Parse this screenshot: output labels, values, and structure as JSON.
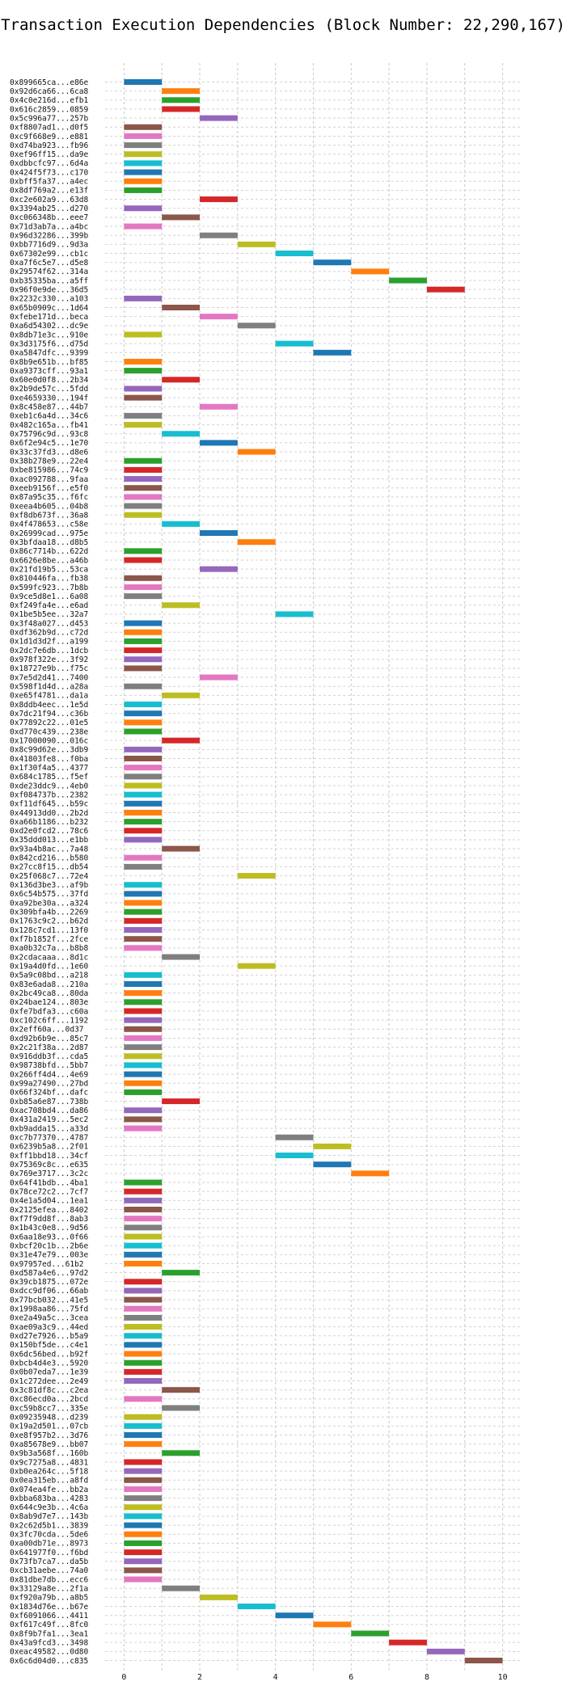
{
  "chart_data": {
    "type": "gantt",
    "title": "Transaction Execution Dependencies (Block Number: 22,290,167)",
    "xlabel": "",
    "ylabel": "",
    "xlim": [
      -0.5,
      10.5
    ],
    "x_ticks": [
      "0",
      "2",
      "4",
      "6",
      "8",
      "10"
    ],
    "grid": true,
    "bar_duration": 1,
    "colors": [
      "#1f77b4",
      "#ff7f0e",
      "#2ca02c",
      "#d62728",
      "#9467bd",
      "#8c564b",
      "#e377c2",
      "#7f7f7f",
      "#bcbd22",
      "#17becf"
    ],
    "transactions": [
      {
        "label": "0x899665ca...e86e",
        "start": 0
      },
      {
        "label": "0x92d6ca66...6ca8",
        "start": 1
      },
      {
        "label": "0x4c0e216d...efb1",
        "start": 1
      },
      {
        "label": "0x616c2859...0859",
        "start": 1
      },
      {
        "label": "0x5c996a77...257b",
        "start": 2
      },
      {
        "label": "0xf8807ad1...d0f5",
        "start": 0
      },
      {
        "label": "0xc9f668e9...e881",
        "start": 0
      },
      {
        "label": "0xd74ba923...fb96",
        "start": 0
      },
      {
        "label": "0xef96ff15...da9e",
        "start": 0
      },
      {
        "label": "0xdbbcfc97...6d4a",
        "start": 0
      },
      {
        "label": "0x424f5f73...c170",
        "start": 0
      },
      {
        "label": "0xbff5fa37...a4ec",
        "start": 0
      },
      {
        "label": "0x8df769a2...e13f",
        "start": 0
      },
      {
        "label": "0xc2e602a9...63d8",
        "start": 2
      },
      {
        "label": "0x3394ab25...d270",
        "start": 0
      },
      {
        "label": "0xc066348b...eee7",
        "start": 1
      },
      {
        "label": "0x71d3ab7a...a4bc",
        "start": 0
      },
      {
        "label": "0x96d32286...399b",
        "start": 2
      },
      {
        "label": "0xbb7716d9...9d3a",
        "start": 3
      },
      {
        "label": "0x67302e99...cb1c",
        "start": 4
      },
      {
        "label": "0xa7f6c5e7...d5e8",
        "start": 5
      },
      {
        "label": "0x29574f62...314a",
        "start": 6
      },
      {
        "label": "0xb35335ba...a5ff",
        "start": 7
      },
      {
        "label": "0x96f0e9de...36d5",
        "start": 8
      },
      {
        "label": "0x2232c330...a103",
        "start": 0
      },
      {
        "label": "0x65b0909c...1d64",
        "start": 1
      },
      {
        "label": "0xfebe171d...beca",
        "start": 2
      },
      {
        "label": "0xa6d54302...dc9e",
        "start": 3
      },
      {
        "label": "0x8db71e3c...910e",
        "start": 0
      },
      {
        "label": "0x3d3175f6...d75d",
        "start": 4
      },
      {
        "label": "0xa5847dfc...9399",
        "start": 5
      },
      {
        "label": "0x8b9e651b...bf85",
        "start": 0
      },
      {
        "label": "0xa9373cff...93a1",
        "start": 0
      },
      {
        "label": "0x60e0d0f8...2b34",
        "start": 1
      },
      {
        "label": "0x2b9de57c...5fdd",
        "start": 0
      },
      {
        "label": "0xe4659330...194f",
        "start": 0
      },
      {
        "label": "0x8c458e87...44b7",
        "start": 2
      },
      {
        "label": "0xeb1c6a4d...34c6",
        "start": 0
      },
      {
        "label": "0x482c165a...fb41",
        "start": 0
      },
      {
        "label": "0x75796c9d...93c8",
        "start": 1
      },
      {
        "label": "0x6f2e94c5...1e70",
        "start": 2
      },
      {
        "label": "0x33c37fd3...d8e6",
        "start": 3
      },
      {
        "label": "0x38b278e9...22e4",
        "start": 0
      },
      {
        "label": "0xbe815986...74c9",
        "start": 0
      },
      {
        "label": "0xac092788...9faa",
        "start": 0
      },
      {
        "label": "0xeeb9156f...e5f0",
        "start": 0
      },
      {
        "label": "0x87a95c35...f6fc",
        "start": 0
      },
      {
        "label": "0xeea4b605...04b8",
        "start": 0
      },
      {
        "label": "0xf8db673f...36a8",
        "start": 0
      },
      {
        "label": "0x4f478653...c58e",
        "start": 1
      },
      {
        "label": "0x26999cad...975e",
        "start": 2
      },
      {
        "label": "0x3bfdaa18...d8b5",
        "start": 3
      },
      {
        "label": "0x86c7714b...622d",
        "start": 0
      },
      {
        "label": "0x6626e8be...a46b",
        "start": 0
      },
      {
        "label": "0x21fd19b5...53ca",
        "start": 2
      },
      {
        "label": "0x810446fa...fb38",
        "start": 0
      },
      {
        "label": "0x599fc923...7b8b",
        "start": 0
      },
      {
        "label": "0x9ce5d8e1...6a08",
        "start": 0
      },
      {
        "label": "0xf249fa4e...e6ad",
        "start": 1
      },
      {
        "label": "0x1be5b5ee...32a7",
        "start": 4
      },
      {
        "label": "0x3f48a027...d453",
        "start": 0
      },
      {
        "label": "0xdf362b9d...c72d",
        "start": 0
      },
      {
        "label": "0x1d1d3d2f...a199",
        "start": 0
      },
      {
        "label": "0x2dc7e6db...1dcb",
        "start": 0
      },
      {
        "label": "0x978f322e...3f92",
        "start": 0
      },
      {
        "label": "0x18727e9b...f75c",
        "start": 0
      },
      {
        "label": "0x7e5d2d41...7400",
        "start": 2
      },
      {
        "label": "0x598f1d4d...a28a",
        "start": 0
      },
      {
        "label": "0xe65f4781...da1a",
        "start": 1
      },
      {
        "label": "0x8ddb4eec...1e5d",
        "start": 0
      },
      {
        "label": "0x7dc21f94...c36b",
        "start": 0
      },
      {
        "label": "0x77892c22...01e5",
        "start": 0
      },
      {
        "label": "0xd770c439...238e",
        "start": 0
      },
      {
        "label": "0x17000090...016c",
        "start": 1
      },
      {
        "label": "0x8c99d62e...3db9",
        "start": 0
      },
      {
        "label": "0x41803fe8...f0ba",
        "start": 0
      },
      {
        "label": "0x1f30f4a5...4377",
        "start": 0
      },
      {
        "label": "0x684c1785...f5ef",
        "start": 0
      },
      {
        "label": "0xde23ddc9...4eb0",
        "start": 0
      },
      {
        "label": "0xf084737b...2382",
        "start": 0
      },
      {
        "label": "0xf11df645...b59c",
        "start": 0
      },
      {
        "label": "0x44913dd0...2b2d",
        "start": 0
      },
      {
        "label": "0xa66b1186...b232",
        "start": 0
      },
      {
        "label": "0xd2e0fcd2...78c6",
        "start": 0
      },
      {
        "label": "0x35ddd013...e1bb",
        "start": 0
      },
      {
        "label": "0x93a4b8ac...7a48",
        "start": 1
      },
      {
        "label": "0x842cd216...b580",
        "start": 0
      },
      {
        "label": "0x27cc8f15...db54",
        "start": 0
      },
      {
        "label": "0x25f068c7...72e4",
        "start": 3
      },
      {
        "label": "0x136d3be3...af9b",
        "start": 0
      },
      {
        "label": "0x6c54b575...37fd",
        "start": 0
      },
      {
        "label": "0xa92be30a...a324",
        "start": 0
      },
      {
        "label": "0x309bfa4b...2269",
        "start": 0
      },
      {
        "label": "0x1763c9c2...b62d",
        "start": 0
      },
      {
        "label": "0x128c7cd1...13f0",
        "start": 0
      },
      {
        "label": "0xf7b1852f...2fce",
        "start": 0
      },
      {
        "label": "0xa0b32c7a...b8b8",
        "start": 0
      },
      {
        "label": "0x2cdacaaa...8d1c",
        "start": 1
      },
      {
        "label": "0x19a4d0fd...1e60",
        "start": 3
      },
      {
        "label": "0x5a9c08bd...a218",
        "start": 0
      },
      {
        "label": "0x83e6ada8...210a",
        "start": 0
      },
      {
        "label": "0x2bc49ca8...80da",
        "start": 0
      },
      {
        "label": "0x24bae124...803e",
        "start": 0
      },
      {
        "label": "0xfe7bdfa3...c60a",
        "start": 0
      },
      {
        "label": "0xc102c6ff...1192",
        "start": 0
      },
      {
        "label": "0x2eff60a...0d37",
        "start": 0
      },
      {
        "label": "0xd92b6b9e...85c7",
        "start": 0
      },
      {
        "label": "0x2c21f38a...2d87",
        "start": 0
      },
      {
        "label": "0x916ddb3f...cda5",
        "start": 0
      },
      {
        "label": "0x98738bfd...5bb7",
        "start": 0
      },
      {
        "label": "0x266ff4d4...4e69",
        "start": 0
      },
      {
        "label": "0x99a27490...27bd",
        "start": 0
      },
      {
        "label": "0x66f324bf...dafc",
        "start": 0
      },
      {
        "label": "0xb85a6e87...738b",
        "start": 1
      },
      {
        "label": "0xac708bd4...da86",
        "start": 0
      },
      {
        "label": "0x431a2419...5ec2",
        "start": 0
      },
      {
        "label": "0xb9adda15...a33d",
        "start": 0
      },
      {
        "label": "0xc7b77370...4787",
        "start": 4
      },
      {
        "label": "0x6239b5a8...2f01",
        "start": 5
      },
      {
        "label": "0xff1bbd18...34cf",
        "start": 4
      },
      {
        "label": "0x75369c8c...e635",
        "start": 5
      },
      {
        "label": "0x769e3717...3c2c",
        "start": 6
      },
      {
        "label": "0x64f41bdb...4ba1",
        "start": 0
      },
      {
        "label": "0x78ce72c2...7cf7",
        "start": 0
      },
      {
        "label": "0x4e1a5d04...1ea1",
        "start": 0
      },
      {
        "label": "0x2125efea...8402",
        "start": 0
      },
      {
        "label": "0xf7f9dd8f...8ab3",
        "start": 0
      },
      {
        "label": "0x1b43c0e8...9d56",
        "start": 0
      },
      {
        "label": "0x6aa18e93...0f66",
        "start": 0
      },
      {
        "label": "0xbcf20c1b...2b6e",
        "start": 0
      },
      {
        "label": "0x31e47e79...003e",
        "start": 0
      },
      {
        "label": "0x97957ed...61b2",
        "start": 0
      },
      {
        "label": "0xd587a4e6...97d2",
        "start": 1
      },
      {
        "label": "0x39cb1875...072e",
        "start": 0
      },
      {
        "label": "0xdcc9df06...66ab",
        "start": 0
      },
      {
        "label": "0x77bcb032...41e5",
        "start": 0
      },
      {
        "label": "0x1998aa86...75fd",
        "start": 0
      },
      {
        "label": "0xe2a49a5c...3cea",
        "start": 0
      },
      {
        "label": "0xae09a3c9...44ed",
        "start": 0
      },
      {
        "label": "0xd27e7926...b5a9",
        "start": 0
      },
      {
        "label": "0x150bf5de...c4e1",
        "start": 0
      },
      {
        "label": "0x6dc56bed...b92f",
        "start": 0
      },
      {
        "label": "0xbcb4d4e3...5920",
        "start": 0
      },
      {
        "label": "0x0b07eda7...1e39",
        "start": 0
      },
      {
        "label": "0x1c272dee...2e49",
        "start": 0
      },
      {
        "label": "0x3c81df8c...c2ea",
        "start": 1
      },
      {
        "label": "0xc86ecd0a...2bcd",
        "start": 0
      },
      {
        "label": "0xc59b8cc7...335e",
        "start": 1
      },
      {
        "label": "0x09235948...d239",
        "start": 0
      },
      {
        "label": "0x19a2d501...07cb",
        "start": 0
      },
      {
        "label": "0xe8f957b2...3d76",
        "start": 0
      },
      {
        "label": "0xa85678e9...bb07",
        "start": 0
      },
      {
        "label": "0x9b3a568f...160b",
        "start": 1
      },
      {
        "label": "0x9c7275a8...4831",
        "start": 0
      },
      {
        "label": "0xb0ea264c...5f18",
        "start": 0
      },
      {
        "label": "0x0ea315eb...a8fd",
        "start": 0
      },
      {
        "label": "0x074ea4fe...bb2a",
        "start": 0
      },
      {
        "label": "0xbba683ba...4283",
        "start": 0
      },
      {
        "label": "0x644c9e3b...4c6a",
        "start": 0
      },
      {
        "label": "0x8ab9d7e7...143b",
        "start": 0
      },
      {
        "label": "0x2c62d5b1...3839",
        "start": 0
      },
      {
        "label": "0x3fc70cda...5de6",
        "start": 0
      },
      {
        "label": "0xa00db71e...8973",
        "start": 0
      },
      {
        "label": "0x641977f0...f6bd",
        "start": 0
      },
      {
        "label": "0x73fb7ca7...da5b",
        "start": 0
      },
      {
        "label": "0xcb31aebe...74a0",
        "start": 0
      },
      {
        "label": "0x81dbe7db...ecc6",
        "start": 0
      },
      {
        "label": "0x33129a8e...2f1a",
        "start": 1
      },
      {
        "label": "0xf920a79b...a8b5",
        "start": 2
      },
      {
        "label": "0x1834d76e...b67e",
        "start": 3
      },
      {
        "label": "0xf6091066...4411",
        "start": 4
      },
      {
        "label": "0xf617c49f...8fc0",
        "start": 5
      },
      {
        "label": "0x8f9b7fa1...3ea1",
        "start": 6
      },
      {
        "label": "0x43a9fcd3...3498",
        "start": 7
      },
      {
        "label": "0xeac49582...0d80",
        "start": 8
      },
      {
        "label": "0x6c6d04d0...c835",
        "start": 9
      }
    ]
  }
}
